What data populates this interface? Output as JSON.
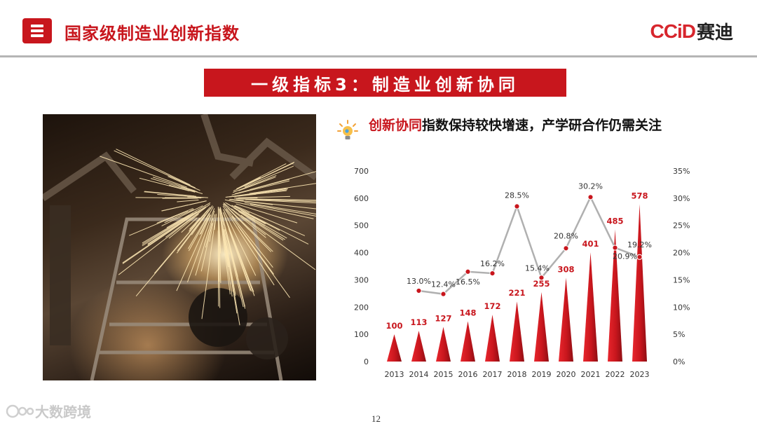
{
  "header": {
    "icon": "menu-logo-icon",
    "title": "国家级制造业创新指数",
    "brand_latin": "CCiD",
    "brand_cn": "赛迪",
    "accent_color": "#c8161d"
  },
  "banner": {
    "text": "一级指标3：制造业创新协同"
  },
  "photo": {
    "icon": "industrial-welding-photo"
  },
  "headline": {
    "icon": "lightbulb-icon",
    "accent": "创新协同",
    "rest": "指数保持较快增速，产学研合作仍需关注"
  },
  "chart_data": {
    "type": "bar",
    "categories": [
      "2013",
      "2014",
      "2015",
      "2016",
      "2017",
      "2018",
      "2019",
      "2020",
      "2021",
      "2022",
      "2023"
    ],
    "series": [
      {
        "type": "bar",
        "axis": "left",
        "values": [
          100,
          113,
          127,
          148,
          172,
          221,
          255,
          308,
          401,
          485,
          578
        ],
        "labels": [
          "100",
          "113",
          "127",
          "148",
          "172",
          "221",
          "255",
          "308",
          "401",
          "485",
          "578"
        ],
        "color": "#c8161d"
      },
      {
        "type": "line",
        "axis": "right",
        "values": [
          null,
          13.0,
          12.4,
          16.5,
          16.2,
          28.5,
          15.4,
          20.8,
          30.2,
          20.9,
          19.2
        ],
        "labels": [
          "",
          "13.0%",
          "12.4%",
          "16.5%",
          "16.2%",
          "28.5%",
          "15.4%",
          "20.8%",
          "30.2%",
          "20.9%",
          "19.2%"
        ],
        "color": "#b0b0b0",
        "marker_color": "#c8161d"
      }
    ],
    "ylim": [
      0,
      700
    ],
    "y_ticks": [
      "0",
      "100",
      "200",
      "300",
      "400",
      "500",
      "600",
      "700"
    ],
    "y2lim": [
      0,
      35
    ],
    "y2_ticks": [
      "0%",
      "5%",
      "10%",
      "15%",
      "20%",
      "25%",
      "30%",
      "35%"
    ],
    "grid": false,
    "legend": "none"
  },
  "footer": {
    "page": "12",
    "watermark": "大数跨境"
  }
}
